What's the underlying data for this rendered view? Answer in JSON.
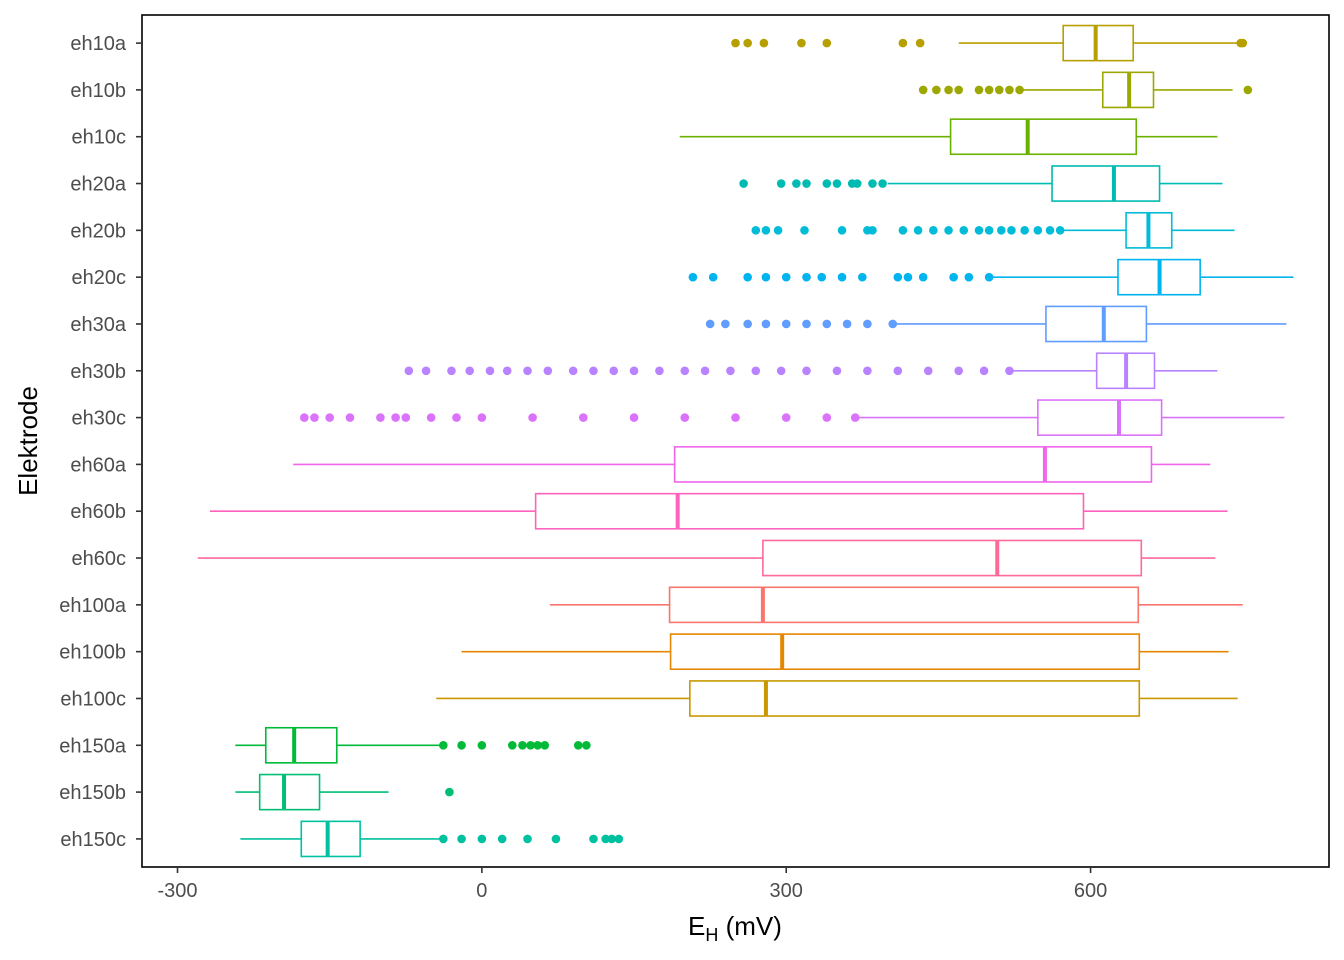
{
  "chart_data": {
    "type": "box",
    "orientation": "horizontal",
    "xlabel": {
      "main": "E",
      "sub": "H",
      "rest": " (mV)"
    },
    "ylabel": "Elektrode",
    "xlim": [
      -335,
      835
    ],
    "xticks": [
      -300,
      0,
      300,
      600
    ],
    "grid": false,
    "legend": "none",
    "series": [
      {
        "name": "eh10a",
        "color": "#B79F00",
        "min": 470,
        "q1": 573,
        "median": 605,
        "q3": 642,
        "max": 745,
        "outliers": [
          250,
          262,
          278,
          315,
          340,
          415,
          432,
          748,
          750
        ]
      },
      {
        "name": "eh10b",
        "color": "#9CA700",
        "min": 530,
        "q1": 612,
        "median": 638,
        "q3": 662,
        "max": 740,
        "outliers": [
          435,
          448,
          460,
          470,
          490,
          500,
          510,
          520,
          530,
          755
        ]
      },
      {
        "name": "eh10c",
        "color": "#6BB100",
        "min": 195,
        "q1": 462,
        "median": 538,
        "q3": 645,
        "max": 725,
        "outliers": []
      },
      {
        "name": "eh20a",
        "color": "#00BBB2",
        "min": 400,
        "q1": 562,
        "median": 623,
        "q3": 668,
        "max": 730,
        "outliers": [
          258,
          295,
          310,
          320,
          340,
          350,
          365,
          370,
          385,
          395
        ]
      },
      {
        "name": "eh20b",
        "color": "#00BCD8",
        "min": 572,
        "q1": 635,
        "median": 657,
        "q3": 680,
        "max": 742,
        "outliers": [
          270,
          280,
          292,
          318,
          355,
          380,
          385,
          415,
          430,
          445,
          460,
          475,
          490,
          500,
          512,
          522,
          535,
          548,
          560,
          570
        ]
      },
      {
        "name": "eh20c",
        "color": "#00B4EF",
        "min": 500,
        "q1": 627,
        "median": 668,
        "q3": 708,
        "max": 800,
        "outliers": [
          208,
          228,
          262,
          280,
          300,
          320,
          335,
          355,
          375,
          410,
          420,
          435,
          465,
          480,
          500
        ]
      },
      {
        "name": "eh30a",
        "color": "#619CFF",
        "min": 405,
        "q1": 556,
        "median": 613,
        "q3": 655,
        "max": 793,
        "outliers": [
          225,
          240,
          262,
          280,
          300,
          320,
          340,
          360,
          380,
          405
        ]
      },
      {
        "name": "eh30b",
        "color": "#B983FF",
        "min": 520,
        "q1": 606,
        "median": 635,
        "q3": 663,
        "max": 725,
        "outliers": [
          -72,
          -55,
          -30,
          -12,
          8,
          25,
          45,
          65,
          90,
          110,
          130,
          150,
          175,
          200,
          220,
          245,
          270,
          295,
          320,
          350,
          380,
          410,
          440,
          470,
          495,
          520
        ]
      },
      {
        "name": "eh30c",
        "color": "#DB72FB",
        "min": 368,
        "q1": 548,
        "median": 628,
        "q3": 670,
        "max": 791,
        "outliers": [
          -175,
          -165,
          -150,
          -130,
          -100,
          -85,
          -75,
          -50,
          -25,
          0,
          50,
          100,
          150,
          200,
          250,
          300,
          340,
          368
        ]
      },
      {
        "name": "eh60a",
        "color": "#F066EA",
        "min": -186,
        "q1": 190,
        "median": 555,
        "q3": 660,
        "max": 718,
        "outliers": []
      },
      {
        "name": "eh60b",
        "color": "#FF62BC",
        "min": -268,
        "q1": 53,
        "median": 193,
        "q3": 593,
        "max": 735,
        "outliers": []
      },
      {
        "name": "eh60c",
        "color": "#FF6A98",
        "min": -280,
        "q1": 277,
        "median": 508,
        "q3": 650,
        "max": 723,
        "outliers": []
      },
      {
        "name": "eh100a",
        "color": "#F8766D",
        "min": 67,
        "q1": 185,
        "median": 277,
        "q3": 647,
        "max": 750,
        "outliers": []
      },
      {
        "name": "eh100b",
        "color": "#E58700",
        "min": -20,
        "q1": 186,
        "median": 296,
        "q3": 648,
        "max": 736,
        "outliers": []
      },
      {
        "name": "eh100c",
        "color": "#C99800",
        "min": -45,
        "q1": 205,
        "median": 280,
        "q3": 648,
        "max": 745,
        "outliers": []
      },
      {
        "name": "eh150a",
        "color": "#00BA38",
        "min": -243,
        "q1": -213,
        "median": -185,
        "q3": -143,
        "max": -40,
        "outliers": [
          -38,
          -20,
          0,
          30,
          40,
          48,
          55,
          62,
          95,
          103
        ]
      },
      {
        "name": "eh150b",
        "color": "#00BF74",
        "min": -243,
        "q1": -219,
        "median": -195,
        "q3": -160,
        "max": -92,
        "outliers": [
          -32
        ]
      },
      {
        "name": "eh150c",
        "color": "#00C19F",
        "min": -238,
        "q1": -178,
        "median": -152,
        "q3": -120,
        "max": -40,
        "outliers": [
          -38,
          -20,
          0,
          20,
          45,
          73,
          110,
          122,
          128,
          135
        ]
      }
    ]
  }
}
